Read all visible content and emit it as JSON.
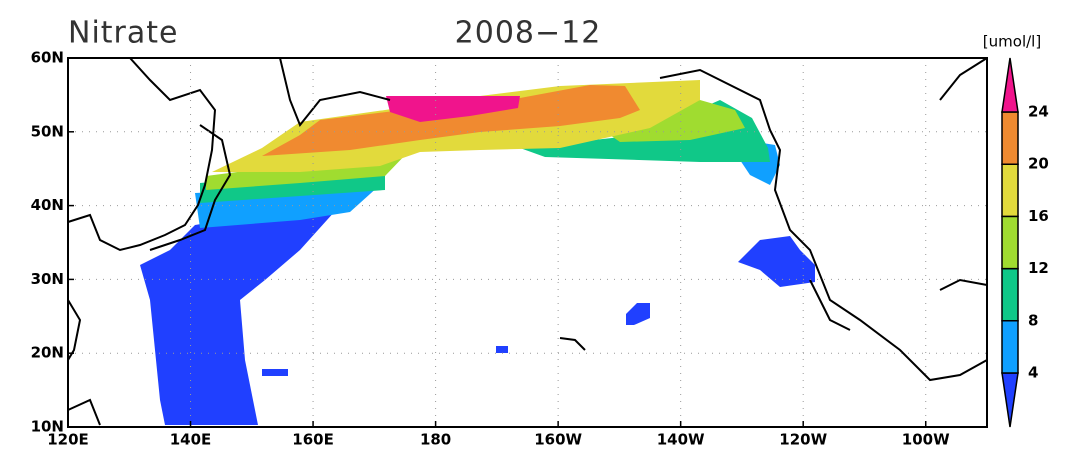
{
  "map": {
    "title": "Nitrate",
    "date": "2008−12",
    "units": "[umol/l]",
    "xlim": [
      120,
      270
    ],
    "ylim": [
      10,
      60
    ],
    "xticks": [
      {
        "value": 120,
        "label": "120E"
      },
      {
        "value": 140,
        "label": "140E"
      },
      {
        "value": 160,
        "label": "160E"
      },
      180,
      {
        "value": 200,
        "label": "160W"
      },
      {
        "value": 220,
        "label": "140W"
      },
      {
        "value": 240,
        "label": "120W"
      },
      {
        "value": 260,
        "label": "100W"
      }
    ],
    "yticks": [
      {
        "value": 10,
        "label": "10N"
      },
      {
        "value": 20,
        "label": "20N"
      },
      {
        "value": 30,
        "label": "30N"
      },
      {
        "value": 40,
        "label": "40N"
      },
      {
        "value": 50,
        "label": "50N"
      },
      {
        "value": 60,
        "label": "60N"
      }
    ],
    "grid": true,
    "colorbar": {
      "levels": [
        4,
        8,
        12,
        16,
        20,
        24
      ],
      "colors": [
        "#2040ff",
        "#10a0ff",
        "#10c888",
        "#a0dc30",
        "#e2da3c",
        "#f08a30",
        "#f0148c"
      ]
    }
  }
}
